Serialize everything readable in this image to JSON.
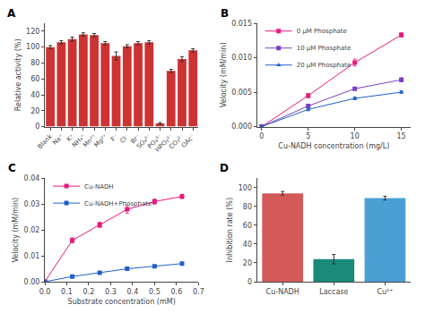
{
  "chart_data": [
    {
      "type": "bar",
      "title": "A",
      "categories": [
        "Blank",
        "Na⁺",
        "K⁺",
        "NH₄⁺",
        "Mn²⁺",
        "Mg²⁺",
        "F⁻",
        "Cl⁻",
        "Br⁻",
        "SO₄²⁻",
        "PO₄³⁻",
        "HPO₃²⁻",
        "CO₃²⁻",
        "OAc⁻"
      ],
      "values": [
        100,
        106,
        110,
        116,
        115,
        105,
        89,
        101,
        105,
        106,
        4,
        70,
        85,
        96
      ],
      "errors": [
        2,
        2,
        2.5,
        2,
        2,
        2,
        5,
        2,
        2,
        2,
        1,
        2,
        3,
        2
      ],
      "color": "#cd3333",
      "ylabel": "Relative activity (%)",
      "ylim": [
        0,
        130
      ],
      "yticks": [
        0,
        20,
        40,
        60,
        80,
        100,
        120
      ],
      "grid": false
    },
    {
      "type": "line",
      "title": "B",
      "x": [
        0,
        5,
        10,
        15
      ],
      "series": [
        {
          "name": "0 μM Phosphate",
          "color": "#e8197e",
          "marker": "square",
          "line_style": "solid",
          "values": [
            0,
            0.0045,
            0.0093,
            0.0133
          ],
          "errors": [
            0,
            0.0003,
            0.0005,
            0.0003
          ]
        },
        {
          "name": "10 μM Phosphate",
          "color": "#7b3fc4",
          "marker": "square",
          "line_style": "solid",
          "values": [
            0,
            0.003,
            0.0055,
            0.0068
          ],
          "errors": [
            0,
            0.0002,
            0.0002,
            0.0003
          ]
        },
        {
          "name": "20 μM Phosphate",
          "color": "#2060c8",
          "marker": "triangle-up",
          "line_style": "solid",
          "values": [
            0,
            0.0025,
            0.0041,
            0.005
          ],
          "errors": [
            0,
            0.0002,
            0.0002,
            0.0002
          ]
        }
      ],
      "xlabel": "Cu-NADH concentration (mg/L)",
      "ylabel": "Velocity (mM/min)",
      "xlim": [
        -0.5,
        16
      ],
      "xticks": [
        0,
        5,
        10,
        15
      ],
      "ylim": [
        0,
        0.015
      ],
      "yticks": [
        {
          "value": 0,
          "label": "0.000"
        },
        0.005,
        {
          "value": 0.01,
          "label": "0.010"
        },
        0.015
      ],
      "legend": "upper left",
      "grid": false
    },
    {
      "type": "line",
      "title": "C",
      "x": [
        0,
        0.125,
        0.25,
        0.375,
        0.5,
        0.625
      ],
      "series": [
        {
          "name": "Cu-NADH",
          "color": "#e8197e",
          "marker": "square",
          "line_style": "solid",
          "values": [
            0,
            0.016,
            0.022,
            0.028,
            0.031,
            0.033
          ],
          "errors": [
            0,
            0.001,
            0.001,
            0.0015,
            0.001,
            0.0008
          ]
        },
        {
          "name": "Cu-NADH+Phosphate",
          "color": "#2060c8",
          "marker": "square",
          "line_style": "solid",
          "values": [
            0,
            0.002,
            0.0035,
            0.005,
            0.006,
            0.007
          ],
          "errors": [
            0,
            0.0003,
            0.0003,
            0.0004,
            0.0003,
            0.0003
          ]
        }
      ],
      "xlabel": "Substrate concentration (mM)",
      "ylabel": "Velocity (mM/min)",
      "xlim": [
        0.0,
        0.7
      ],
      "xticks": [
        {
          "value": 0,
          "label": "0.0"
        },
        0.1,
        0.2,
        0.3,
        0.4,
        0.5,
        0.6,
        0.7
      ],
      "ylim": [
        0,
        0.04
      ],
      "yticks": [
        {
          "value": 0,
          "label": "0.00"
        },
        0.01,
        0.02,
        0.03,
        0.04
      ],
      "legend": "upper left",
      "grid": false
    },
    {
      "type": "bar",
      "title": "D",
      "categories": [
        "Cu-NADH",
        "Laccase",
        "Cu²⁺"
      ],
      "values": [
        94,
        24,
        89
      ],
      "errors": [
        2,
        5,
        2
      ],
      "colors": [
        "#d45a5a",
        "#1a8a7a",
        "#4a9fd4"
      ],
      "ylabel": "Inhibition rate (%)",
      "ylim": [
        0,
        110
      ],
      "yticks": [
        0,
        20,
        40,
        60,
        80,
        100
      ],
      "grid": false
    }
  ]
}
